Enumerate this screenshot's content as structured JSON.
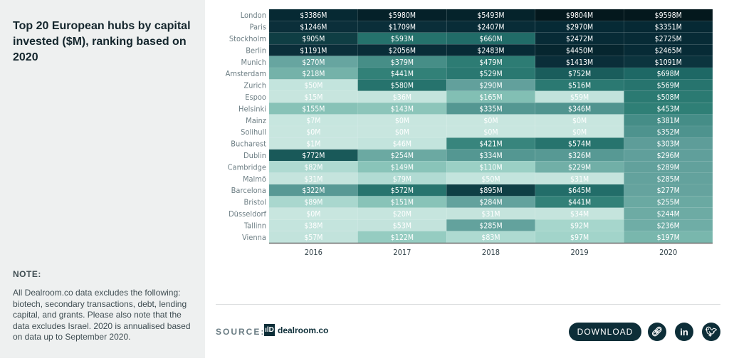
{
  "title": "Top 20 European hubs by capital invested ($M), ranking based on 2020",
  "note_heading": "NOTE:",
  "note_text": "All Dealroom.co data excludes the following: biotech, secondary transactions, debt, lending capital, and grants. Please also note that the data excludes Israel. 2020 is annualised based on data up to September 2020.",
  "footer": {
    "source_label": "SOURCE:",
    "logo_mark": "ılD",
    "logo_text": "dealroom.co",
    "download_label": "DOWNLOAD",
    "icons": [
      "link-icon",
      "linkedin-icon",
      "twitter-icon"
    ]
  },
  "chart_data": {
    "type": "heatmap",
    "x": [
      "2016",
      "2017",
      "2018",
      "2019",
      "2020"
    ],
    "y": [
      "London",
      "Paris",
      "Stockholm",
      "Berlin",
      "Munich",
      "Amsterdam",
      "Zurich",
      "Espoo",
      "Helsinki",
      "Mainz",
      "Solihull",
      "Bucharest",
      "Dublin",
      "Cambridge",
      "Malmö",
      "Barcelona",
      "Bristol",
      "Düsseldorf",
      "Tallinn",
      "Vienna"
    ],
    "unit_prefix": "$",
    "unit_suffix": "M",
    "values": [
      [
        3386,
        5980,
        5493,
        9804,
        9598
      ],
      [
        1246,
        1709,
        2407,
        2970,
        3351
      ],
      [
        905,
        593,
        660,
        2472,
        2725
      ],
      [
        1191,
        2056,
        2483,
        4450,
        2465
      ],
      [
        270,
        379,
        479,
        1413,
        1091
      ],
      [
        218,
        441,
        529,
        752,
        698
      ],
      [
        50,
        580,
        290,
        516,
        569
      ],
      [
        15,
        36,
        165,
        59,
        508
      ],
      [
        155,
        143,
        335,
        346,
        453
      ],
      [
        7,
        0,
        0,
        0,
        381
      ],
      [
        0,
        0,
        0,
        0,
        352
      ],
      [
        1,
        46,
        421,
        574,
        303
      ],
      [
        772,
        254,
        334,
        326,
        296
      ],
      [
        82,
        149,
        110,
        229,
        289
      ],
      [
        31,
        79,
        50,
        31,
        285
      ],
      [
        322,
        572,
        895,
        645,
        277
      ],
      [
        89,
        151,
        284,
        441,
        255
      ],
      [
        0,
        20,
        31,
        34,
        244
      ],
      [
        38,
        53,
        285,
        92,
        236
      ],
      [
        57,
        122,
        83,
        97,
        197
      ]
    ],
    "color_low": "#c8e6df",
    "color_high": "#04181d"
  }
}
